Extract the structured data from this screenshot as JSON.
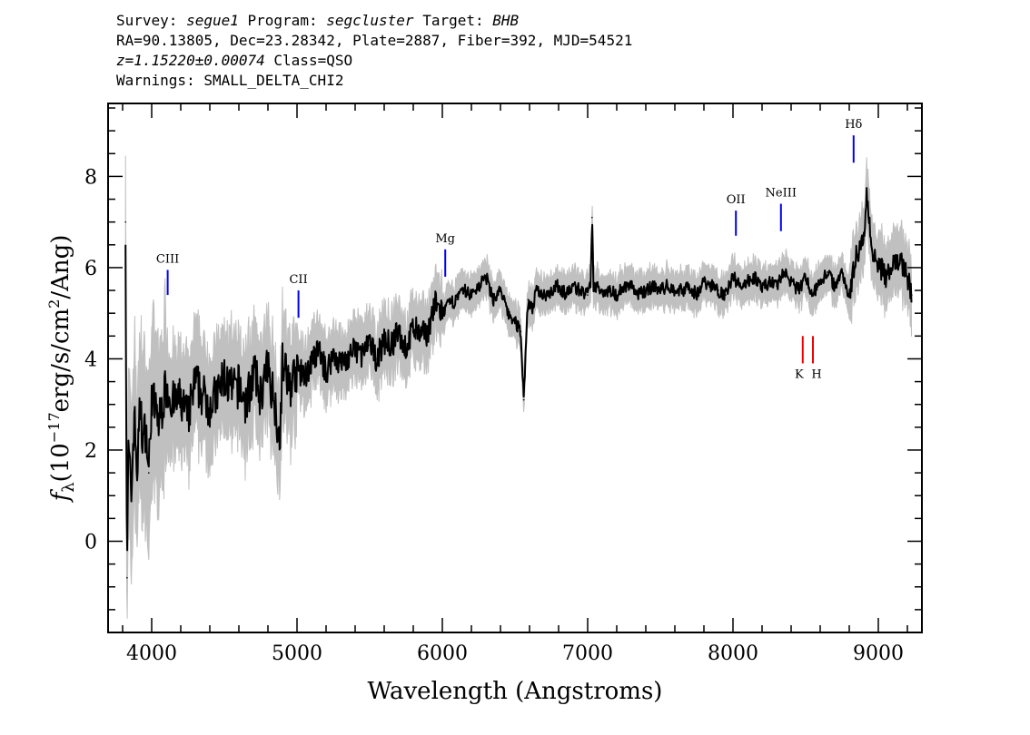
{
  "header": {
    "survey_label": "Survey:",
    "survey": "segue1",
    "program_label": "Program:",
    "program": "segcluster",
    "target_label": "Target:",
    "target": "BHB",
    "coords_line": "RA=90.13805, Dec=23.28342, Plate=2887, Fiber=392, MJD=54521",
    "redshift": "z=1.15220±0.00074",
    "class": "Class=QSO",
    "warnings": "Warnings: SMALL_DELTA_CHI2"
  },
  "chart_data": {
    "type": "line",
    "xlabel": "Wavelength (Angstroms)",
    "ylabel_prefix": "f",
    "ylabel_sub": "λ",
    "ylabel_unit_a": "(10",
    "ylabel_exp": "−17",
    "ylabel_unit_b": "erg/s/cm",
    "ylabel_exp2": "2",
    "ylabel_unit_c": "/Ang)",
    "xlim": [
      3700,
      9300
    ],
    "ylim": [
      -2,
      9.6
    ],
    "x_ticks": [
      4000,
      5000,
      6000,
      7000,
      8000,
      9000
    ],
    "y_ticks": [
      0,
      2,
      4,
      6,
      8
    ],
    "grid": false,
    "series": [
      {
        "role": "flux",
        "color": "#000000",
        "x": [
          3820,
          3830,
          3840,
          3860,
          3880,
          3900,
          3920,
          3940,
          3960,
          3980,
          4000,
          4050,
          4100,
          4150,
          4200,
          4250,
          4300,
          4350,
          4400,
          4450,
          4500,
          4550,
          4600,
          4650,
          4700,
          4750,
          4800,
          4850,
          4880,
          4900,
          4950,
          5000,
          5050,
          5100,
          5150,
          5200,
          5250,
          5300,
          5350,
          5400,
          5450,
          5500,
          5550,
          5600,
          5650,
          5700,
          5750,
          5800,
          5850,
          5900,
          5950,
          6000,
          6050,
          6100,
          6150,
          6200,
          6250,
          6300,
          6350,
          6400,
          6450,
          6500,
          6540,
          6560,
          6575,
          6590,
          6620,
          6650,
          6700,
          6750,
          6800,
          6850,
          6900,
          6950,
          7000,
          7020,
          7030,
          7040,
          7100,
          7150,
          7200,
          7250,
          7300,
          7350,
          7400,
          7450,
          7500,
          7550,
          7600,
          7650,
          7700,
          7750,
          7800,
          7850,
          7900,
          7950,
          8000,
          8050,
          8100,
          8150,
          8200,
          8250,
          8300,
          8350,
          8400,
          8450,
          8500,
          8550,
          8600,
          8650,
          8700,
          8750,
          8800,
          8850,
          8900,
          8920,
          8950,
          9000,
          9050,
          9100,
          9150,
          9200,
          9230
        ],
        "y": [
          7.0,
          -0.8,
          2.0,
          1.0,
          2.8,
          1.5,
          3.0,
          2.2,
          2.5,
          1.5,
          3.2,
          2.6,
          3.4,
          3.0,
          3.1,
          2.7,
          3.5,
          3.2,
          3.0,
          3.2,
          3.6,
          3.3,
          3.4,
          3.0,
          3.7,
          3.2,
          3.8,
          3.0,
          2.2,
          3.9,
          3.4,
          3.8,
          3.6,
          3.9,
          4.2,
          3.7,
          4.1,
          3.9,
          4.0,
          4.2,
          4.1,
          4.3,
          4.0,
          4.4,
          4.3,
          4.6,
          4.2,
          4.7,
          4.5,
          4.6,
          5.2,
          5.0,
          5.2,
          5.3,
          5.5,
          5.4,
          5.6,
          5.8,
          5.3,
          5.5,
          5.0,
          4.8,
          4.6,
          3.1,
          4.3,
          5.3,
          5.1,
          5.5,
          5.4,
          5.5,
          5.6,
          5.4,
          5.6,
          5.5,
          5.4,
          5.6,
          7.1,
          5.6,
          5.5,
          5.5,
          5.4,
          5.6,
          5.6,
          5.4,
          5.5,
          5.6,
          5.5,
          5.6,
          5.5,
          5.5,
          5.6,
          5.4,
          5.7,
          5.6,
          5.5,
          5.4,
          5.8,
          5.6,
          5.7,
          5.8,
          5.5,
          5.7,
          5.6,
          5.9,
          5.7,
          5.5,
          5.8,
          5.4,
          5.7,
          5.9,
          5.6,
          5.9,
          5.4,
          6.3,
          6.6,
          7.7,
          6.5,
          6.1,
          5.8,
          6.0,
          6.2,
          5.8,
          5.4
        ]
      }
    ],
    "lines": [
      {
        "label": "CIII",
        "x": 4110,
        "color": "#0000ee",
        "y0": 5.4,
        "y1": 5.95
      },
      {
        "label": "CII",
        "x": 5010,
        "color": "#0000ee",
        "y0": 4.9,
        "y1": 5.5
      },
      {
        "label": "Mg",
        "x": 6020,
        "color": "#0000ee",
        "y0": 5.8,
        "y1": 6.4
      },
      {
        "label": "OII",
        "x": 8020,
        "color": "#0000ee",
        "y0": 6.7,
        "y1": 7.25
      },
      {
        "label": "NeIII",
        "x": 8330,
        "color": "#0000ee",
        "y0": 6.8,
        "y1": 7.4
      },
      {
        "label": "Hδ",
        "x": 8830,
        "color": "#0000ee",
        "y0": 8.3,
        "y1": 8.9
      },
      {
        "label": "K",
        "x": 8480,
        "color": "#ee0000",
        "y0": 3.9,
        "y1": 4.5
      },
      {
        "label": "H",
        "x": 8550,
        "color": "#ee0000",
        "y0": 3.9,
        "y1": 4.5
      }
    ],
    "colors": {
      "flux": "#000000",
      "error_band": "#c0c0c0",
      "emission": "#0000ee",
      "absorption": "#ee0000"
    }
  }
}
